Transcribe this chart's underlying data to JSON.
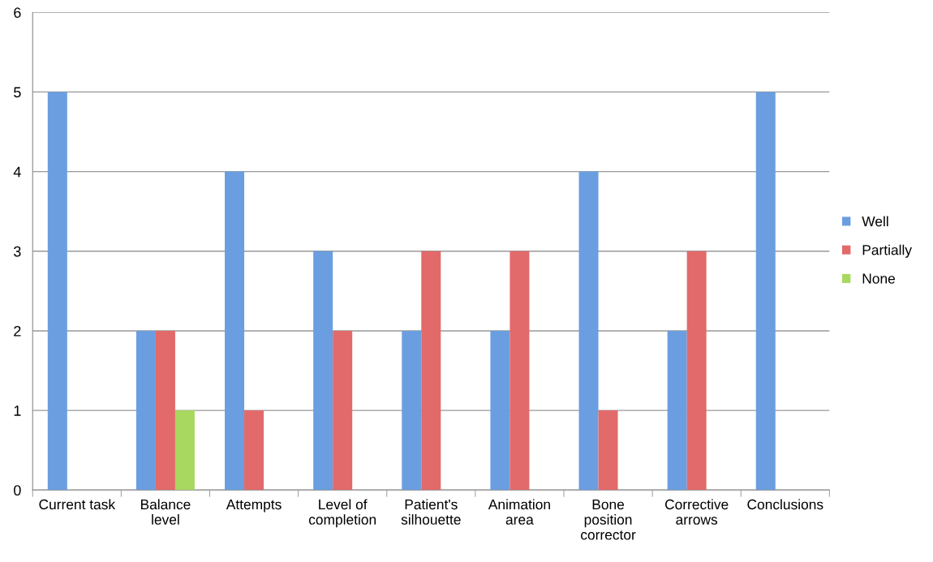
{
  "chart_data": {
    "type": "bar",
    "categories": [
      "Current task",
      "Balance\nlevel",
      "Attempts",
      "Level of\ncompletion",
      "Patient's\nsilhouette",
      "Animation\narea",
      "Bone\nposition\ncorrector",
      "Corrective\narrows",
      "Conclusions"
    ],
    "series": [
      {
        "name": "Well",
        "color": "#6a9ee0",
        "values": [
          5,
          2,
          4,
          3,
          2,
          2,
          4,
          2,
          5
        ]
      },
      {
        "name": "Partially",
        "color": "#e26a6a",
        "values": [
          0,
          2,
          1,
          2,
          3,
          3,
          1,
          3,
          0
        ]
      },
      {
        "name": "None",
        "color": "#a8d860",
        "values": [
          0,
          1,
          0,
          0,
          0,
          0,
          0,
          0,
          0
        ]
      }
    ],
    "ylim": [
      0,
      6
    ],
    "yticks": [
      0,
      1,
      2,
      3,
      4,
      5,
      6
    ],
    "grid": "y",
    "legend": "right"
  }
}
